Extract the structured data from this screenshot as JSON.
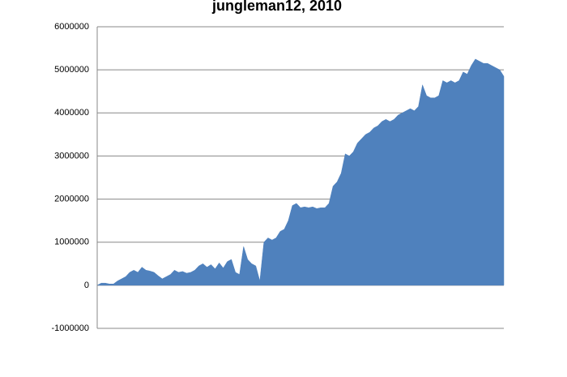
{
  "chart_data": {
    "type": "area",
    "title": "jungleman12, 2010",
    "values": [
      0,
      50000,
      50000,
      30000,
      30000,
      100000,
      150000,
      200000,
      300000,
      350000,
      300000,
      420000,
      350000,
      330000,
      300000,
      220000,
      150000,
      200000,
      250000,
      350000,
      300000,
      320000,
      280000,
      300000,
      350000,
      450000,
      500000,
      420000,
      480000,
      380000,
      520000,
      400000,
      550000,
      600000,
      300000,
      250000,
      900000,
      600000,
      500000,
      450000,
      100000,
      1000000,
      1100000,
      1050000,
      1100000,
      1250000,
      1300000,
      1500000,
      1850000,
      1900000,
      1800000,
      1820000,
      1800000,
      1820000,
      1780000,
      1800000,
      1800000,
      1900000,
      2300000,
      2400000,
      2600000,
      3050000,
      3000000,
      3100000,
      3300000,
      3400000,
      3500000,
      3550000,
      3650000,
      3700000,
      3800000,
      3850000,
      3800000,
      3850000,
      3950000,
      4000000,
      4050000,
      4100000,
      4050000,
      4150000,
      4650000,
      4400000,
      4350000,
      4350000,
      4400000,
      4750000,
      4700000,
      4750000,
      4700000,
      4750000,
      4950000,
      4900000,
      5100000,
      5250000,
      5200000,
      5150000,
      5150000,
      5100000,
      5050000,
      5000000,
      4850000
    ],
    "color": "#4f81bd",
    "ylim": [
      -1000000,
      6000000
    ],
    "yticks": [
      -1000000,
      0,
      1000000,
      2000000,
      3000000,
      4000000,
      5000000,
      6000000
    ],
    "grid": true
  }
}
